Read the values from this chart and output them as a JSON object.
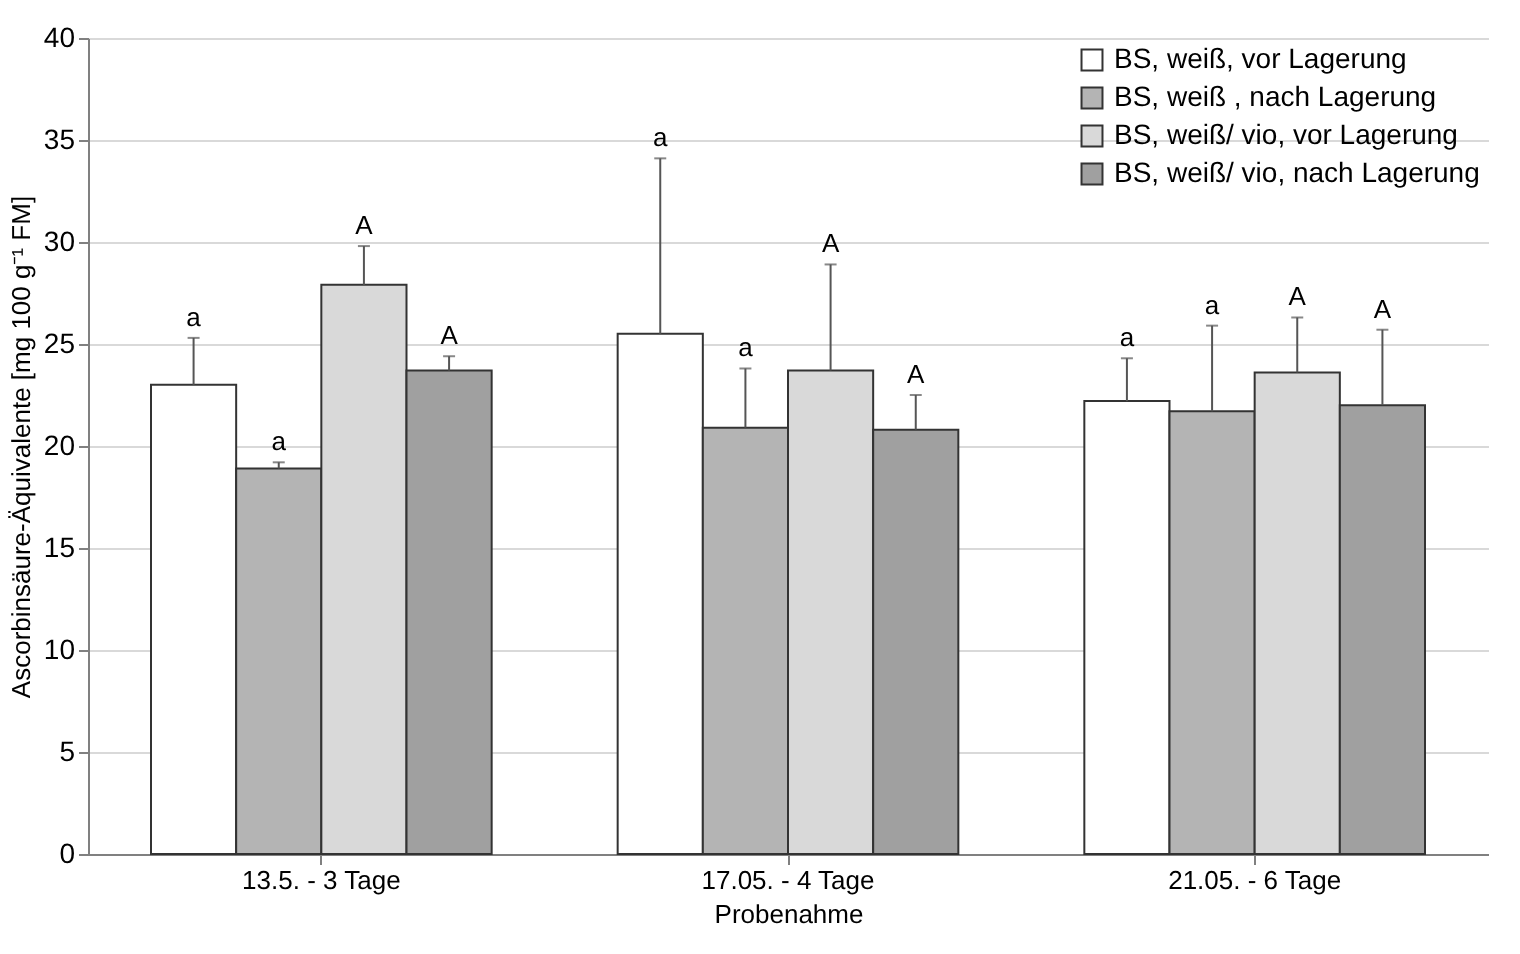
{
  "chart_data": {
    "type": "bar",
    "xlabel": "Probenahme",
    "ylabel": "Ascorbinsäure-Äquivalente [mg 100 g⁻¹ FM]",
    "categories": [
      "13.5. - 3 Tage",
      "17.05. - 4 Tage",
      "21.05. - 6 Tage"
    ],
    "series": [
      {
        "name": "BS, weiß, vor Lagerung",
        "color": "#ffffff",
        "values": [
          23.0,
          25.5,
          22.2
        ],
        "errors": [
          [
            23.0,
            25.3
          ],
          [
            25.5,
            34.1
          ],
          [
            22.2,
            24.3
          ]
        ]
      },
      {
        "name": "BS, weiß , nach Lagerung",
        "color": "#b4b4b4",
        "values": [
          18.9,
          20.9,
          21.7
        ],
        "errors": [
          [
            18.9,
            19.2
          ],
          [
            20.9,
            23.8
          ],
          [
            21.7,
            25.9
          ]
        ]
      },
      {
        "name": "BS, weiß/ vio, vor Lagerung",
        "color": "#d9d9d9",
        "values": [
          27.9,
          23.7,
          23.6
        ],
        "errors": [
          [
            27.9,
            29.8
          ],
          [
            23.7,
            28.9
          ],
          [
            23.6,
            26.3
          ]
        ]
      },
      {
        "name": "BS, weiß/ vio, nach Lagerung",
        "color": "#a0a0a0",
        "values": [
          23.7,
          20.8,
          22.0
        ],
        "errors": [
          [
            23.7,
            24.4
          ],
          [
            20.8,
            22.5
          ],
          [
            22.0,
            25.7
          ]
        ]
      }
    ],
    "annotations": [
      "a",
      "a",
      "A",
      "A",
      "a",
      "a",
      "A",
      "A",
      "a",
      "a",
      "A",
      "A"
    ],
    "ylim": [
      0,
      40
    ],
    "yticks": [
      0,
      5,
      10,
      15,
      20,
      25,
      30,
      35,
      40
    ],
    "grid": "y",
    "legend": "top right"
  }
}
